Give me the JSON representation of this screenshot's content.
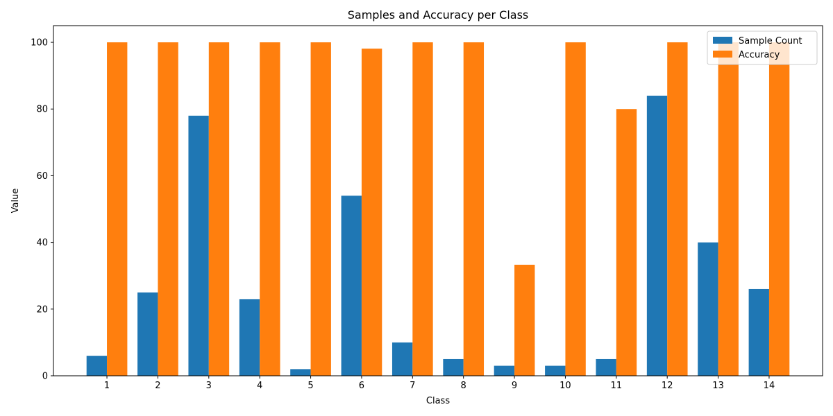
{
  "chart_data": {
    "type": "bar",
    "title": "Samples and Accuracy per Class",
    "xlabel": "Class",
    "ylabel": "Value",
    "categories": [
      "1",
      "2",
      "3",
      "4",
      "5",
      "6",
      "7",
      "8",
      "9",
      "10",
      "11",
      "12",
      "13",
      "14"
    ],
    "series": [
      {
        "name": "Sample Count",
        "color": "#1f77b4",
        "values": [
          6,
          25,
          78,
          23,
          2,
          54,
          10,
          5,
          3,
          3,
          5,
          84,
          40,
          26
        ]
      },
      {
        "name": "Accuracy",
        "color": "#ff7f0e",
        "values": [
          100,
          100,
          100,
          100,
          100,
          98.1,
          100,
          100,
          33.3,
          100,
          80,
          100,
          100,
          100
        ]
      }
    ],
    "ylim": [
      0,
      105
    ],
    "yticks": [
      0,
      20,
      40,
      60,
      80,
      100
    ],
    "grid": false,
    "legend_position": "top-right"
  }
}
